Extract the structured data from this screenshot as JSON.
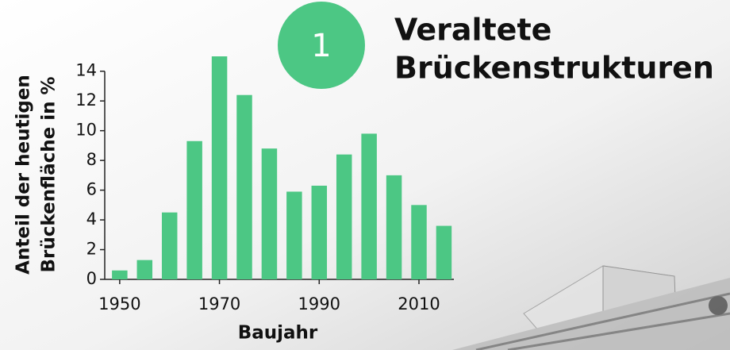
{
  "chart_data": {
    "type": "bar",
    "badge": "1",
    "title_lines": [
      "Veraltete",
      "Brückenstrukturen"
    ],
    "ylabel_lines": [
      "Anteil der heutigen",
      "Brückenfläche in %"
    ],
    "xlabel": "Baujahr",
    "x": [
      1950,
      1955,
      1960,
      1965,
      1970,
      1975,
      1980,
      1985,
      1990,
      1995,
      2000,
      2005,
      2010,
      2015
    ],
    "values": [
      0.6,
      1.3,
      4.5,
      9.3,
      15.0,
      12.4,
      8.8,
      5.9,
      6.3,
      8.4,
      9.8,
      7.0,
      5.0,
      3.6
    ],
    "color": "#4cc784",
    "xlim": [
      1947,
      2017
    ],
    "xticks": [
      1950,
      1970,
      1990,
      2010
    ],
    "ylim": [
      0,
      15
    ],
    "yticks": [
      0,
      2,
      4,
      6,
      8,
      10,
      12,
      14
    ]
  }
}
